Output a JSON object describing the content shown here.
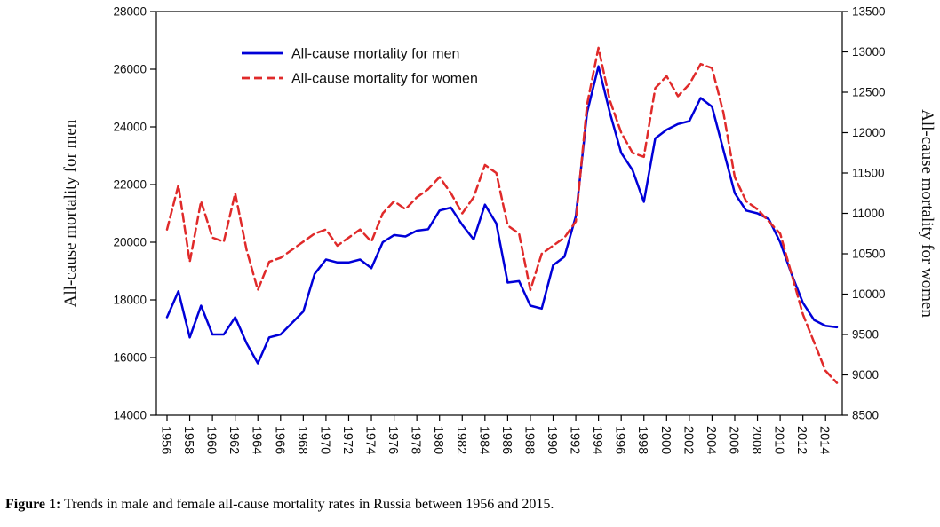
{
  "figure": {
    "caption_label": "Figure 1:",
    "caption_text": "Trends in male and female all-cause mortality rates in Russia between 1956 and 2015."
  },
  "chart_data": {
    "type": "line",
    "title": "",
    "grid": false,
    "background": "#ffffff",
    "x": [
      1956,
      1957,
      1958,
      1959,
      1960,
      1961,
      1962,
      1963,
      1964,
      1965,
      1966,
      1967,
      1968,
      1969,
      1970,
      1971,
      1972,
      1973,
      1974,
      1975,
      1976,
      1977,
      1978,
      1979,
      1980,
      1981,
      1982,
      1983,
      1984,
      1985,
      1986,
      1987,
      1988,
      1989,
      1990,
      1991,
      1992,
      1993,
      1994,
      1995,
      1996,
      1997,
      1998,
      1999,
      2000,
      2001,
      2002,
      2003,
      2004,
      2005,
      2006,
      2007,
      2008,
      2009,
      2010,
      2011,
      2012,
      2013,
      2014,
      2015
    ],
    "series": [
      {
        "name": "All-cause mortality for men",
        "axis": "left",
        "color": "#0000d8",
        "style": "solid",
        "values": [
          17400,
          18300,
          16700,
          17800,
          16800,
          16800,
          17400,
          16500,
          15800,
          16700,
          16800,
          17200,
          17600,
          18900,
          19400,
          19300,
          19300,
          19400,
          19100,
          20000,
          20250,
          20200,
          20400,
          20450,
          21100,
          21200,
          20600,
          20100,
          21300,
          20650,
          18600,
          18650,
          17800,
          17700,
          19200,
          19500,
          20900,
          24500,
          26100,
          24500,
          23100,
          22500,
          21400,
          23600,
          23900,
          24100,
          24200,
          25000,
          24700,
          23200,
          21700,
          21100,
          21000,
          20800,
          20000,
          18900,
          17900,
          17300,
          17100,
          17050
        ]
      },
      {
        "name": "All-cause mortality for women",
        "axis": "right",
        "color": "#e02a2a",
        "style": "dashed",
        "values": [
          10800,
          11350,
          10400,
          11150,
          10700,
          10650,
          11250,
          10550,
          10050,
          10400,
          10450,
          10550,
          10650,
          10750,
          10800,
          10600,
          10700,
          10800,
          10650,
          11000,
          11150,
          11050,
          11200,
          11300,
          11450,
          11250,
          11000,
          11200,
          11600,
          11500,
          10850,
          10750,
          10050,
          10500,
          10600,
          10700,
          10900,
          12350,
          13050,
          12400,
          12000,
          11750,
          11700,
          12550,
          12700,
          12450,
          12600,
          12850,
          12800,
          12250,
          11450,
          11150,
          11050,
          10900,
          10750,
          10250,
          9750,
          9400,
          9050,
          8900
        ]
      }
    ],
    "left_axis": {
      "label": "All-cause mortality for men",
      "min": 14000,
      "max": 28000,
      "ticks": [
        14000,
        16000,
        18000,
        20000,
        22000,
        24000,
        26000,
        28000
      ]
    },
    "right_axis": {
      "label": "All-cause mortality for women",
      "min": 8500,
      "max": 13500,
      "ticks": [
        8500,
        9000,
        9500,
        10000,
        10500,
        11000,
        11500,
        12000,
        12500,
        13000,
        13500
      ]
    },
    "x_axis": {
      "tick_years": [
        1956,
        1958,
        1960,
        1962,
        1964,
        1966,
        1968,
        1970,
        1972,
        1974,
        1976,
        1978,
        1980,
        1982,
        1984,
        1986,
        1988,
        1990,
        1992,
        1994,
        1996,
        1998,
        2000,
        2002,
        2004,
        2006,
        2008,
        2010,
        2012,
        2014
      ]
    },
    "legend": {
      "position": "top-inside",
      "border": false
    }
  }
}
